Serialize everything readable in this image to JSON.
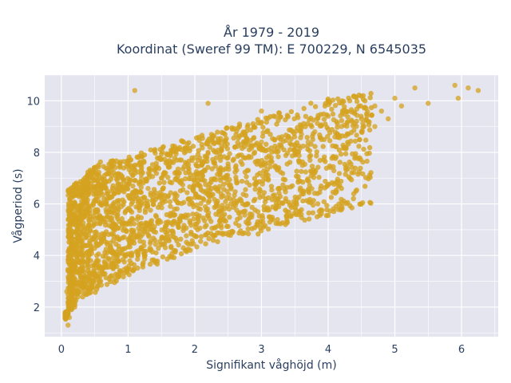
{
  "chart_data": {
    "type": "scatter",
    "title_lines": [
      "År 1979 - 2019",
      "Koordinat (Sweref 99 TM): E 700229, N 6545035"
    ],
    "xlabel": "Signifikant våghöjd (m)",
    "ylabel": "Vågperiod (s)",
    "xlim": [
      -0.25,
      6.55
    ],
    "ylim": [
      0.85,
      11.0
    ],
    "x_ticks": [
      0,
      1,
      2,
      3,
      4,
      5,
      6
    ],
    "y_ticks": [
      2,
      4,
      6,
      8,
      10
    ],
    "grid": true,
    "legend": "none",
    "colors": {
      "marker": "#d4a21f",
      "plot_bg": "#e5e5f0",
      "grid": "#ffffff"
    },
    "series": [
      {
        "points": [
          [
            0.1,
            1.3
          ],
          [
            0.12,
            1.6
          ],
          [
            0.15,
            1.9
          ],
          [
            0.1,
            2.2
          ],
          [
            0.2,
            2.0
          ],
          [
            0.08,
            2.6
          ],
          [
            0.15,
            2.9
          ],
          [
            0.25,
            2.4
          ],
          [
            0.3,
            2.8
          ],
          [
            0.1,
            3.4
          ],
          [
            0.2,
            3.6
          ],
          [
            0.35,
            3.2
          ],
          [
            0.4,
            3.8
          ],
          [
            0.15,
            4.4
          ],
          [
            0.25,
            4.8
          ],
          [
            0.45,
            4.2
          ],
          [
            0.5,
            4.9
          ],
          [
            0.2,
            5.4
          ],
          [
            0.3,
            5.8
          ],
          [
            0.55,
            5.5
          ],
          [
            0.6,
            6.0
          ],
          [
            0.3,
            6.3
          ],
          [
            0.45,
            6.6
          ],
          [
            0.7,
            6.4
          ],
          [
            0.8,
            5.2
          ],
          [
            0.9,
            5.9
          ],
          [
            1.0,
            6.8
          ],
          [
            1.1,
            6.2
          ],
          [
            1.2,
            7.0
          ],
          [
            1.3,
            6.6
          ],
          [
            1.4,
            7.3
          ],
          [
            1.5,
            7.0
          ],
          [
            1.6,
            7.5
          ],
          [
            1.7,
            7.2
          ],
          [
            1.8,
            7.7
          ],
          [
            1.9,
            7.4
          ],
          [
            2.0,
            7.8
          ],
          [
            2.1,
            7.5
          ],
          [
            2.2,
            8.0
          ],
          [
            2.3,
            7.6
          ],
          [
            2.4,
            8.1
          ],
          [
            2.5,
            7.8
          ],
          [
            2.6,
            8.2
          ],
          [
            2.7,
            7.9
          ],
          [
            2.8,
            8.3
          ],
          [
            2.9,
            8.0
          ],
          [
            3.0,
            8.4
          ],
          [
            3.1,
            8.1
          ],
          [
            3.2,
            8.5
          ],
          [
            3.3,
            8.2
          ],
          [
            3.4,
            8.6
          ],
          [
            3.5,
            8.3
          ],
          [
            3.6,
            8.7
          ],
          [
            3.7,
            8.4
          ],
          [
            3.8,
            8.8
          ],
          [
            3.9,
            8.5
          ],
          [
            4.0,
            8.9
          ],
          [
            4.1,
            8.6
          ],
          [
            4.2,
            9.0
          ],
          [
            4.3,
            8.7
          ],
          [
            4.4,
            9.1
          ],
          [
            4.5,
            8.8
          ],
          [
            4.6,
            9.2
          ],
          [
            4.7,
            9.0
          ],
          [
            4.8,
            9.6
          ],
          [
            4.9,
            9.3
          ],
          [
            5.0,
            10.1
          ],
          [
            5.1,
            9.8
          ],
          [
            5.3,
            10.5
          ],
          [
            5.5,
            9.9
          ],
          [
            5.9,
            10.6
          ],
          [
            5.95,
            10.1
          ],
          [
            6.1,
            10.5
          ],
          [
            6.25,
            10.4
          ],
          [
            1.1,
            10.4
          ],
          [
            2.2,
            9.9
          ],
          [
            3.0,
            9.6
          ],
          [
            4.0,
            9.4
          ],
          [
            4.7,
            9.8
          ]
        ]
      }
    ]
  }
}
